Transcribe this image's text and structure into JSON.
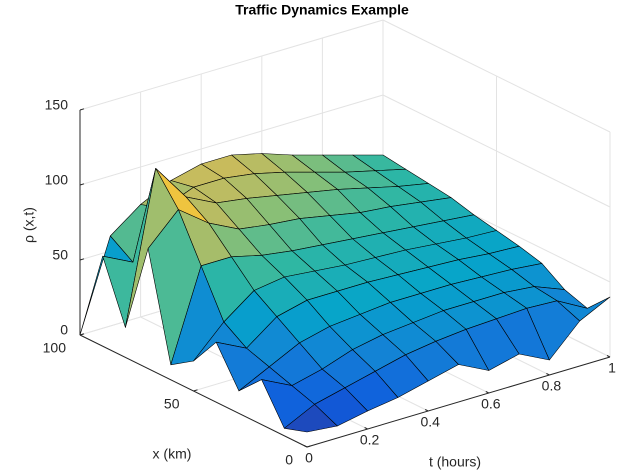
{
  "chart_data": {
    "type": "surface",
    "title": "Traffic Dynamics Example",
    "xlabel": "t (hours)",
    "ylabel": "x (km)",
    "zlabel": "ρ (x,t)",
    "x": [
      0,
      0.1,
      0.2,
      0.3,
      0.4,
      0.5,
      0.6,
      0.7,
      0.8,
      0.9,
      1
    ],
    "y": [
      0,
      10,
      20,
      30,
      40,
      50,
      60,
      70,
      80,
      90,
      100
    ],
    "z": [
      [
        10,
        8,
        12,
        15,
        20,
        25,
        15,
        20,
        10,
        30,
        40
      ],
      [
        5,
        15,
        20,
        25,
        30,
        33,
        35,
        36,
        37,
        36,
        25
      ],
      [
        30,
        20,
        25,
        32,
        36,
        38,
        40,
        40,
        40,
        38,
        30
      ],
      [
        15,
        25,
        35,
        40,
        42,
        44,
        44,
        44,
        43,
        42,
        40
      ],
      [
        40,
        30,
        45,
        50,
        50,
        50,
        49,
        48,
        47,
        45,
        44
      ],
      [
        20,
        40,
        55,
        58,
        56,
        54,
        53,
        52,
        50,
        48,
        47
      ],
      [
        10,
        70,
        70,
        65,
        62,
        60,
        58,
        56,
        54,
        52,
        50
      ],
      [
        80,
        100,
        85,
        75,
        72,
        70,
        66,
        62,
        60,
        57,
        54
      ],
      [
        20,
        120,
        95,
        85,
        82,
        78,
        74,
        70,
        65,
        60,
        56
      ],
      [
        60,
        50,
        80,
        88,
        88,
        85,
        80,
        74,
        68,
        63,
        58
      ],
      [
        0,
        60,
        75,
        85,
        90,
        90,
        85,
        78,
        72,
        66,
        60
      ]
    ],
    "xlim": [
      0,
      1
    ],
    "xticks": [
      0,
      0.2,
      0.4,
      0.6,
      0.8,
      1
    ],
    "ylim": [
      0,
      100
    ],
    "yticks": [
      0,
      50,
      100
    ],
    "zlim": [
      0,
      150
    ],
    "zticks": [
      0,
      50,
      100,
      150
    ],
    "grid": true,
    "colormap": "parula"
  }
}
